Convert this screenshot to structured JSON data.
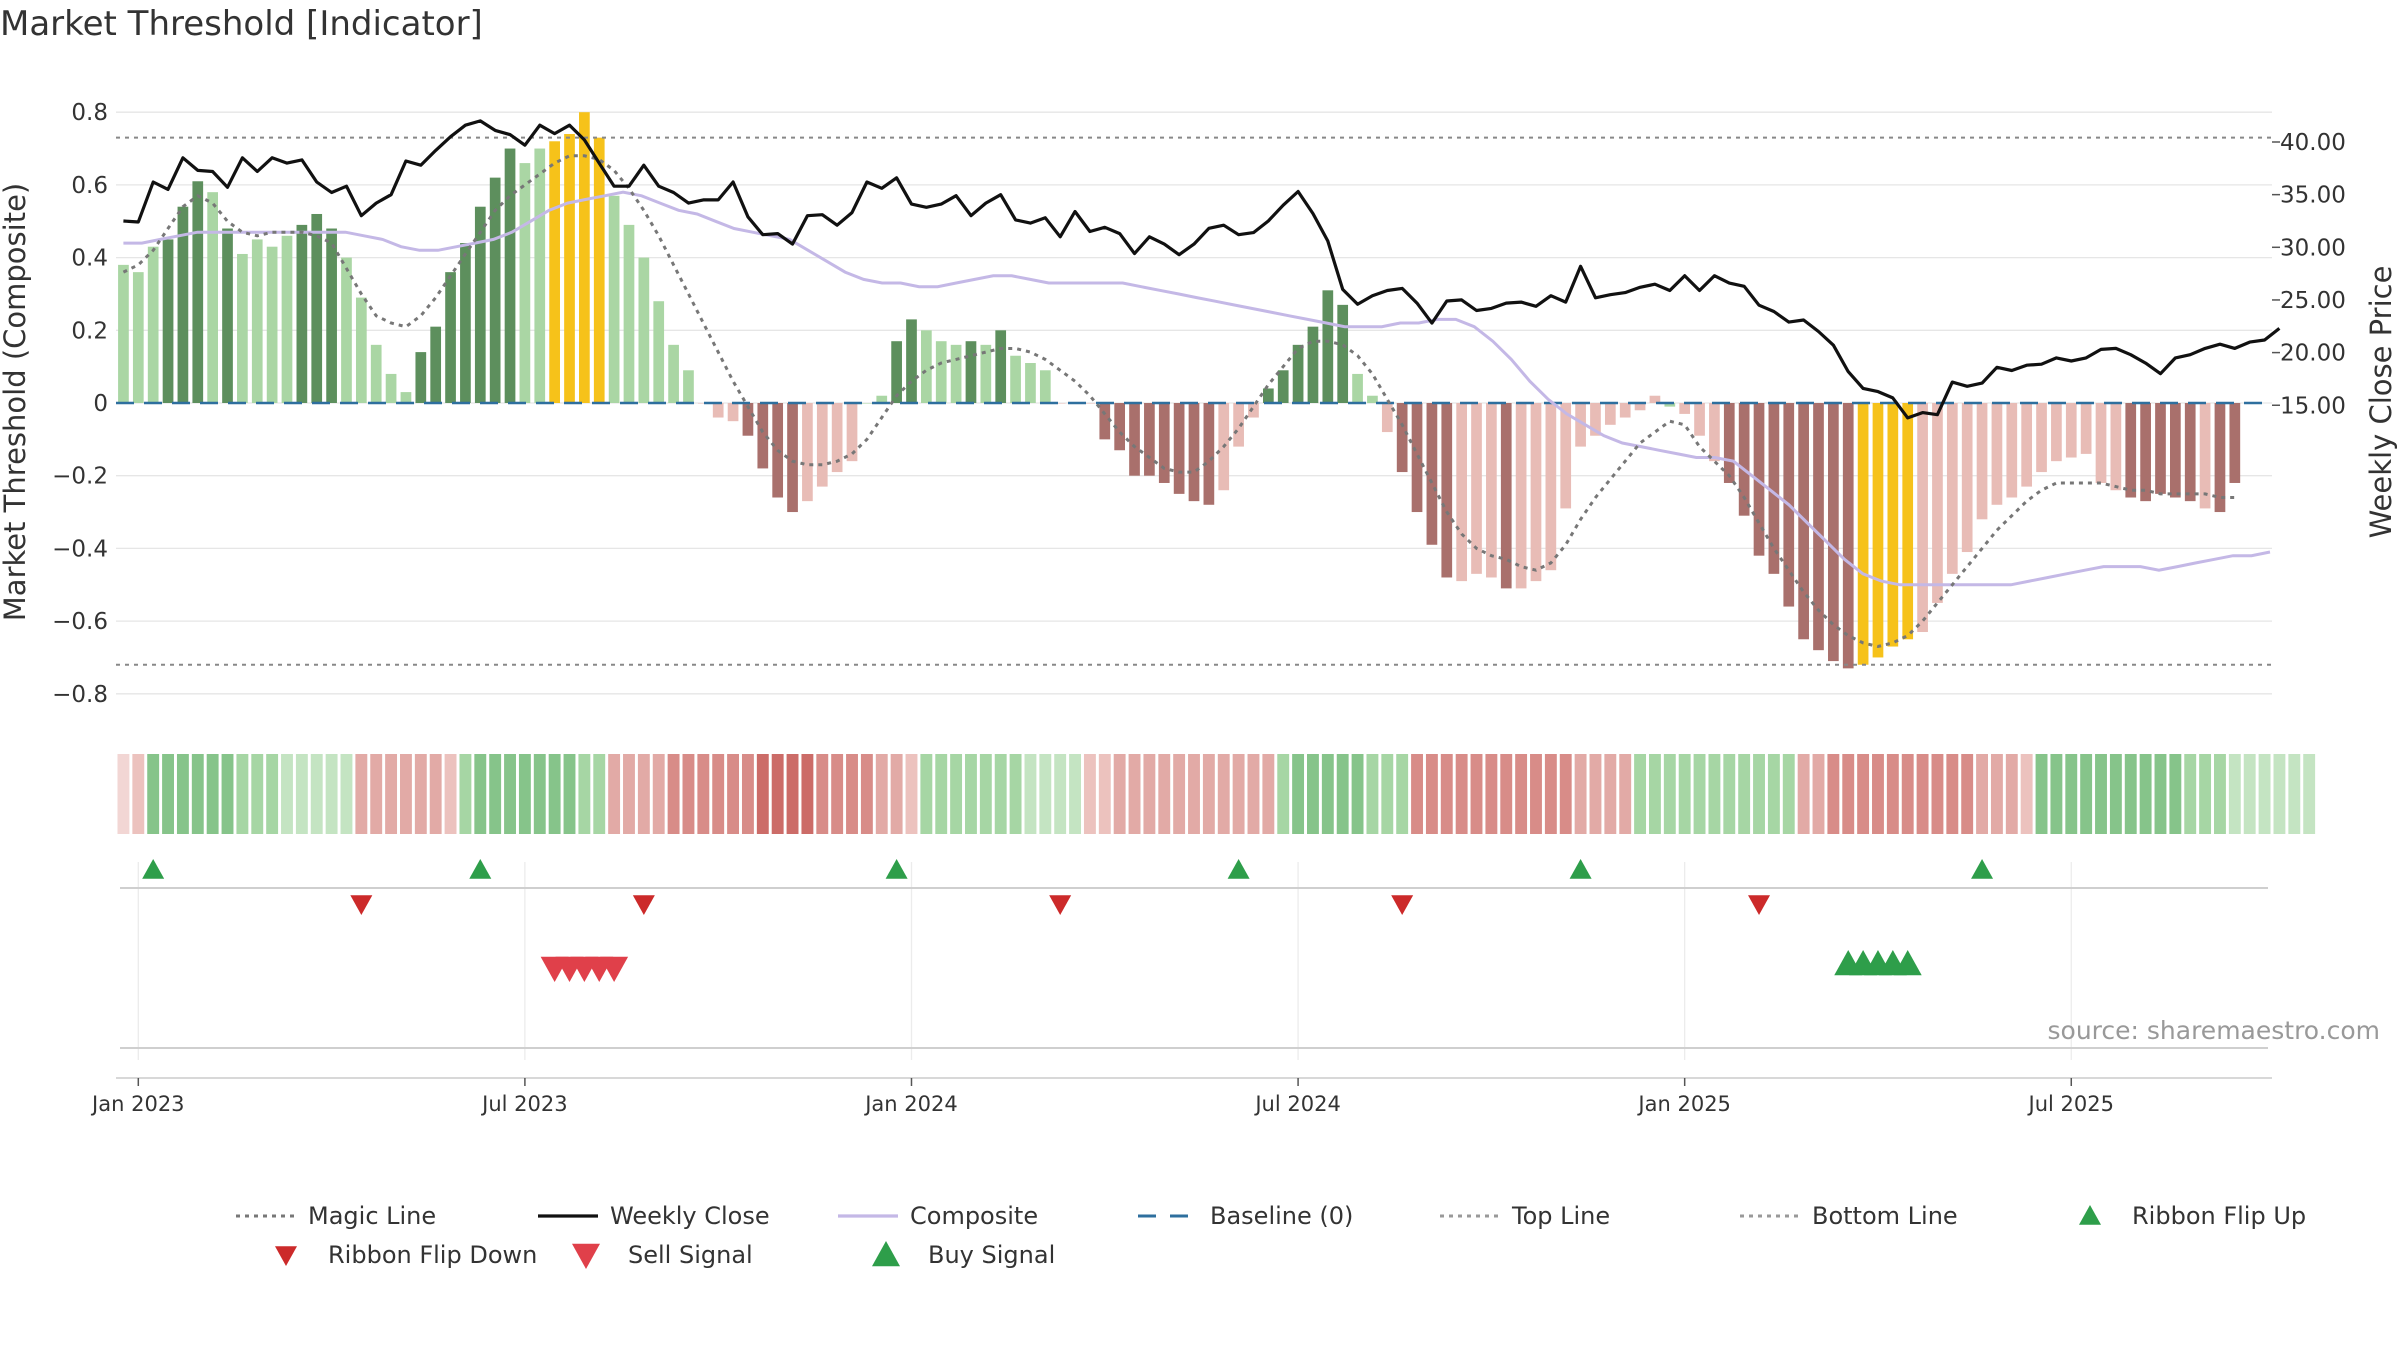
{
  "chart_data": {
    "type": "bar",
    "title": "Market Threshold [Indicator]",
    "ylabel": "Market Threshold (Composite)",
    "y2label": "Weekly Close Price",
    "ylim": [
      -0.88,
      0.8
    ],
    "y2lim": [
      12.5,
      42.1
    ],
    "yticks": [
      0.8,
      0.6,
      0.4,
      0.2,
      0,
      -0.2,
      -0.4,
      -0.6,
      -0.8
    ],
    "yticklabels": [
      "0.8",
      "0.6",
      "0.4",
      "0.2",
      "0",
      "−0.2",
      "−0.4",
      "−0.6",
      "−0.8"
    ],
    "y2ticks": [
      40,
      35,
      30,
      25,
      20,
      15
    ],
    "y2ticklabels": [
      "40.00",
      "35.00",
      "30.00",
      "25.00",
      "20.00",
      "15.00"
    ],
    "xticks": [
      {
        "label": "Jan 2023",
        "week": 1
      },
      {
        "label": "Jul 2023",
        "week": 27
      },
      {
        "label": "Jan 2024",
        "week": 53
      },
      {
        "label": "Jul 2024",
        "week": 79
      },
      {
        "label": "Jan 2025",
        "week": 105
      },
      {
        "label": "Jul 2025",
        "week": 131
      }
    ],
    "top_line": 0.73,
    "bottom_line": -0.72,
    "baseline": 0,
    "weeks": 145,
    "bar_values": [
      0.38,
      0.36,
      0.43,
      0.45,
      0.54,
      0.61,
      0.58,
      0.48,
      0.41,
      0.45,
      0.43,
      0.46,
      0.49,
      0.52,
      0.48,
      0.4,
      0.29,
      0.16,
      0.08,
      0.03,
      0.14,
      0.21,
      0.36,
      0.44,
      0.54,
      0.62,
      0.7,
      0.66,
      0.7,
      0.72,
      0.74,
      0.8,
      0.73,
      0.57,
      0.49,
      0.4,
      0.28,
      0.16,
      0.09,
      0.0,
      -0.04,
      -0.05,
      -0.09,
      -0.18,
      -0.26,
      -0.3,
      -0.27,
      -0.23,
      -0.19,
      -0.16,
      0.0,
      0.02,
      0.17,
      0.23,
      0.2,
      0.17,
      0.16,
      0.17,
      0.16,
      0.2,
      0.13,
      0.11,
      0.09,
      0.0,
      0.0,
      0.0,
      -0.1,
      -0.13,
      -0.2,
      -0.2,
      -0.22,
      -0.25,
      -0.27,
      -0.28,
      -0.24,
      -0.12,
      -0.04,
      0.04,
      0.09,
      0.16,
      0.21,
      0.31,
      0.27,
      0.08,
      0.02,
      -0.08,
      -0.19,
      -0.3,
      -0.39,
      -0.48,
      -0.49,
      -0.47,
      -0.48,
      -0.51,
      -0.51,
      -0.49,
      -0.46,
      -0.29,
      -0.12,
      -0.09,
      -0.06,
      -0.04,
      -0.02,
      0.02,
      -0.01,
      -0.03,
      -0.09,
      -0.16,
      -0.22,
      -0.31,
      -0.42,
      -0.47,
      -0.56,
      -0.65,
      -0.68,
      -0.71,
      -0.73,
      -0.72,
      -0.7,
      -0.67,
      -0.65,
      -0.63,
      -0.55,
      -0.47,
      -0.41,
      -0.32,
      -0.28,
      -0.26,
      -0.23,
      -0.19,
      -0.16,
      -0.15,
      -0.14,
      -0.22,
      -0.24,
      -0.26,
      -0.27,
      -0.25,
      -0.26,
      -0.27,
      -0.29,
      -0.3,
      -0.22
    ],
    "bar_colors": [
      "lg",
      "lg",
      "lg",
      "dg",
      "dg",
      "dg",
      "lg",
      "dg",
      "lg",
      "lg",
      "lg",
      "lg",
      "dg",
      "dg",
      "dg",
      "lg",
      "lg",
      "lg",
      "lg",
      "lg",
      "dg",
      "dg",
      "dg",
      "dg",
      "dg",
      "dg",
      "dg",
      "lg",
      "lg",
      "y",
      "y",
      "y",
      "y",
      "lg",
      "lg",
      "lg",
      "lg",
      "lg",
      "lg",
      "lr",
      "lr",
      "lr",
      "dr",
      "dr",
      "dr",
      "dr",
      "lr",
      "lr",
      "lr",
      "lr",
      "lg",
      "lg",
      "dg",
      "dg",
      "lg",
      "lg",
      "lg",
      "dg",
      "lg",
      "dg",
      "lg",
      "lg",
      "lg",
      "lr",
      "lr",
      "lr",
      "dr",
      "dr",
      "dr",
      "dr",
      "dr",
      "dr",
      "dr",
      "dr",
      "lr",
      "lr",
      "lr",
      "dg",
      "dg",
      "dg",
      "dg",
      "dg",
      "dg",
      "lg",
      "lg",
      "lr",
      "dr",
      "dr",
      "dr",
      "dr",
      "lr",
      "lr",
      "lr",
      "dr",
      "lr",
      "lr",
      "lr",
      "lr",
      "lr",
      "lr",
      "lr",
      "lr",
      "lr",
      "lr",
      "lg",
      "lr",
      "lr",
      "lr",
      "dr",
      "dr",
      "dr",
      "dr",
      "dr",
      "dr",
      "dr",
      "dr",
      "dr",
      "y",
      "y",
      "y",
      "y",
      "lr",
      "lr",
      "lr",
      "lr",
      "lr",
      "lr",
      "lr",
      "lr",
      "lr",
      "lr",
      "lr",
      "lr",
      "lr",
      "lr",
      "dr",
      "dr",
      "dr",
      "dr",
      "dr",
      "lr",
      "dr",
      "dr",
      "dr",
      "lr"
    ],
    "series": [
      {
        "name": "Magic Line",
        "style": "dotted",
        "color": "#777777",
        "values": [
          0.36,
          0.38,
          0.42,
          0.48,
          0.54,
          0.57,
          0.55,
          0.5,
          0.47,
          0.46,
          0.47,
          0.47,
          0.47,
          0.46,
          0.44,
          0.37,
          0.3,
          0.24,
          0.22,
          0.21,
          0.24,
          0.29,
          0.35,
          0.41,
          0.47,
          0.53,
          0.57,
          0.6,
          0.63,
          0.66,
          0.68,
          0.68,
          0.67,
          0.64,
          0.59,
          0.53,
          0.46,
          0.38,
          0.3,
          0.22,
          0.14,
          0.06,
          -0.01,
          -0.08,
          -0.13,
          -0.16,
          -0.17,
          -0.17,
          -0.16,
          -0.14,
          -0.1,
          -0.04,
          0.02,
          0.06,
          0.09,
          0.11,
          0.12,
          0.13,
          0.14,
          0.15,
          0.15,
          0.14,
          0.12,
          0.09,
          0.06,
          0.02,
          -0.03,
          -0.08,
          -0.12,
          -0.15,
          -0.18,
          -0.19,
          -0.19,
          -0.16,
          -0.12,
          -0.07,
          -0.01,
          0.05,
          0.1,
          0.15,
          0.17,
          0.17,
          0.16,
          0.13,
          0.08,
          0.01,
          -0.06,
          -0.14,
          -0.22,
          -0.3,
          -0.36,
          -0.4,
          -0.42,
          -0.43,
          -0.45,
          -0.46,
          -0.44,
          -0.39,
          -0.32,
          -0.26,
          -0.21,
          -0.16,
          -0.11,
          -0.08,
          -0.05,
          -0.06,
          -0.12,
          -0.16,
          -0.2,
          -0.26,
          -0.33,
          -0.4,
          -0.46,
          -0.52,
          -0.57,
          -0.61,
          -0.64,
          -0.66,
          -0.67,
          -0.66,
          -0.64,
          -0.6,
          -0.55,
          -0.5,
          -0.45,
          -0.4,
          -0.35,
          -0.31,
          -0.27,
          -0.24,
          -0.22,
          -0.22,
          -0.22,
          -0.22,
          -0.23,
          -0.24,
          -0.24,
          -0.25,
          -0.25,
          -0.25,
          -0.25,
          -0.26,
          -0.26
        ]
      },
      {
        "name": "Weekly Close",
        "style": "solid",
        "color": "#111111",
        "values": [
          32.5,
          32.4,
          36.2,
          35.5,
          38.5,
          37.3,
          37.2,
          35.7,
          38.5,
          37.2,
          38.5,
          38.0,
          38.3,
          36.2,
          35.2,
          35.8,
          33.0,
          34.2,
          35.0,
          38.2,
          37.8,
          39.2,
          40.5,
          41.6,
          42.0,
          41.1,
          40.7,
          39.7,
          41.6,
          40.8,
          41.6,
          40.2,
          38.0,
          35.8,
          35.8,
          37.8,
          35.8,
          35.2,
          34.2,
          34.5,
          34.5,
          36.2,
          32.9,
          31.2,
          31.3,
          30.3,
          33.0,
          33.1,
          32.1,
          33.3,
          36.2,
          35.6,
          36.6,
          34.1,
          33.8,
          34.1,
          34.9,
          33.0,
          34.2,
          35.0,
          32.6,
          32.3,
          32.8,
          31.0,
          33.4,
          31.5,
          31.9,
          31.3,
          29.4,
          31.0,
          30.3,
          29.3,
          30.3,
          31.8,
          32.1,
          31.2,
          31.4,
          32.5,
          34.0,
          35.3,
          33.2,
          30.6,
          26.0,
          24.6,
          25.4,
          25.9,
          26.1,
          24.7,
          22.8,
          24.9,
          25.0,
          24.0,
          24.2,
          24.7,
          24.8,
          24.4,
          25.4,
          24.8,
          28.2,
          25.2,
          25.5,
          25.7,
          26.2,
          26.5,
          25.9,
          27.3,
          25.9,
          27.3,
          26.6,
          26.3,
          24.5,
          23.9,
          22.9,
          23.1,
          22.0,
          20.7,
          18.2,
          16.6,
          16.3,
          15.7,
          13.8,
          14.3,
          14.1,
          17.2,
          16.8,
          17.1,
          18.6,
          18.3,
          18.8,
          18.9,
          19.5,
          19.2,
          19.5,
          20.3,
          20.4,
          19.8,
          19.0,
          18.0,
          19.5,
          19.8,
          20.4,
          20.8,
          20.4,
          21.0,
          21.2,
          22.3
        ]
      },
      {
        "name": "Composite",
        "style": "solid",
        "color": "#c4b8e6",
        "values": [
          0.44,
          0.44,
          0.45,
          0.46,
          0.47,
          0.47,
          0.47,
          0.47,
          0.47,
          0.47,
          0.47,
          0.47,
          0.47,
          0.46,
          0.45,
          0.43,
          0.42,
          0.42,
          0.43,
          0.44,
          0.45,
          0.47,
          0.5,
          0.53,
          0.55,
          0.56,
          0.57,
          0.58,
          0.57,
          0.55,
          0.53,
          0.52,
          0.5,
          0.48,
          0.47,
          0.46,
          0.45,
          0.42,
          0.39,
          0.36,
          0.34,
          0.33,
          0.33,
          0.32,
          0.32,
          0.33,
          0.34,
          0.35,
          0.35,
          0.34,
          0.33,
          0.33,
          0.33,
          0.33,
          0.33,
          0.32,
          0.31,
          0.3,
          0.29,
          0.28,
          0.27,
          0.26,
          0.25,
          0.24,
          0.23,
          0.22,
          0.21,
          0.21,
          0.21,
          0.22,
          0.22,
          0.23,
          0.23,
          0.21,
          0.17,
          0.12,
          0.06,
          0.01,
          -0.03,
          -0.06,
          -0.09,
          -0.11,
          -0.12,
          -0.13,
          -0.14,
          -0.15,
          -0.15,
          -0.16,
          -0.2,
          -0.24,
          -0.28,
          -0.33,
          -0.38,
          -0.43,
          -0.47,
          -0.49,
          -0.5,
          -0.5,
          -0.5,
          -0.5,
          -0.5,
          -0.5,
          -0.5,
          -0.49,
          -0.48,
          -0.47,
          -0.46,
          -0.45,
          -0.45,
          -0.45,
          -0.46,
          -0.45,
          -0.44,
          -0.43,
          -0.42,
          -0.42,
          -0.41
        ],
        "x_start": 1,
        "x_step": 1
      },
      {
        "name": "Baseline (0)",
        "style": "dashed",
        "color": "#2e6f9e"
      },
      {
        "name": "Top Line",
        "style": "dotted",
        "color": "#888888"
      },
      {
        "name": "Bottom Line",
        "style": "dotted",
        "color": "#888888"
      }
    ],
    "ribbon_colors": [
      "p1",
      "r1",
      "g3",
      "g3",
      "g3",
      "g3",
      "g3",
      "g3",
      "g2",
      "g2",
      "g2",
      "g1",
      "g1",
      "g1",
      "g1",
      "g1",
      "r2",
      "r2",
      "r2",
      "r2",
      "r2",
      "r2",
      "r1",
      "g2",
      "g3",
      "g3",
      "g3",
      "g3",
      "g3",
      "g3",
      "g3",
      "g2",
      "g2",
      "r2",
      "r2",
      "r2",
      "r2",
      "r3",
      "r3",
      "r3",
      "r3",
      "r3",
      "r3",
      "r4",
      "r4",
      "r4",
      "r4",
      "r3",
      "r3",
      "r3",
      "r3",
      "r2",
      "r2",
      "r1",
      "g2",
      "g2",
      "g2",
      "g2",
      "g2",
      "g2",
      "g2",
      "g1",
      "g1",
      "g1",
      "g1",
      "r1",
      "r1",
      "r2",
      "r2",
      "r2",
      "r2",
      "r2",
      "r2",
      "r2",
      "r2",
      "r2",
      "r2",
      "r2",
      "g2",
      "g3",
      "g3",
      "g3",
      "g3",
      "g3",
      "g2",
      "g2",
      "g2",
      "r3",
      "r3",
      "r3",
      "r3",
      "r3",
      "r3",
      "r3",
      "r3",
      "r3",
      "r3",
      "r3",
      "r2",
      "r2",
      "r2",
      "r2",
      "g2",
      "g2",
      "g2",
      "g2",
      "g2",
      "g2",
      "g2",
      "g2",
      "g2",
      "g2",
      "g2",
      "r2",
      "r2",
      "r3",
      "r3",
      "r3",
      "r3",
      "r3",
      "r3",
      "r3",
      "r3",
      "r3",
      "r3",
      "r2",
      "r2",
      "r2",
      "r1",
      "g3",
      "g3",
      "g3",
      "g3",
      "g3",
      "g3",
      "g3",
      "g3",
      "g3",
      "g3",
      "g2",
      "g2",
      "g2",
      "g1",
      "g1",
      "g1",
      "g1",
      "g1",
      "g1"
    ],
    "ribbon_flip_up_weeks": [
      2,
      24,
      52,
      75,
      98,
      125
    ],
    "ribbon_flip_down_weeks": [
      16,
      35,
      63,
      86,
      110
    ],
    "sell_signal_weeks": [
      29,
      30,
      31,
      32,
      33
    ],
    "buy_signal_weeks": [
      116,
      117,
      118,
      119,
      120
    ],
    "source_text": "source: sharemaestro.com",
    "legend": [
      {
        "label": "Magic Line",
        "symbol": "dotted-line",
        "color": "#777777"
      },
      {
        "label": "Weekly Close",
        "symbol": "solid-line",
        "color": "#111111"
      },
      {
        "label": "Composite",
        "symbol": "solid-line",
        "color": "#c4b8e6"
      },
      {
        "label": "Baseline (0)",
        "symbol": "dashed-line",
        "color": "#2e6f9e"
      },
      {
        "label": "Top Line",
        "symbol": "dotted-line",
        "color": "#999999"
      },
      {
        "label": "Bottom Line",
        "symbol": "dotted-line",
        "color": "#999999"
      },
      {
        "label": "Ribbon Flip Up",
        "symbol": "triangle-up",
        "color": "#2e9e4a"
      },
      {
        "label": "Ribbon Flip Down",
        "symbol": "triangle-down",
        "color": "#cc2a2a"
      },
      {
        "label": "Sell Signal",
        "symbol": "triangle-down",
        "color": "#e0404a"
      },
      {
        "label": "Buy Signal",
        "symbol": "triangle-up",
        "color": "#2e9e4a"
      }
    ],
    "colors": {
      "dark_green": "#5d8f5d",
      "light_green": "#aad6a4",
      "dark_red": "#a9706c",
      "light_red": "#e8bcb6",
      "yellow": "#f6c21a",
      "grid": "#e6e6e6"
    }
  }
}
